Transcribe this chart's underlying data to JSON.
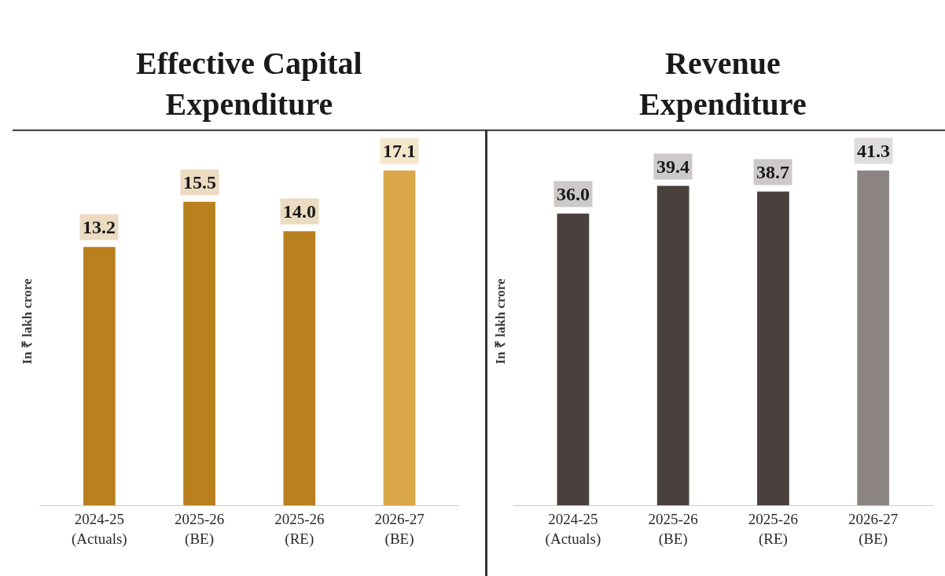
{
  "chart_data": [
    {
      "type": "bar",
      "title": "Effective Capital\nExpenditure",
      "ylabel": "In ₹ lakh crore",
      "categories": [
        "2024-25\n(Actuals)",
        "2025-26\n(BE)",
        "2025-26\n(RE)",
        "2026-27\n(BE)"
      ],
      "values": [
        13.2,
        15.5,
        14.0,
        17.1
      ],
      "value_labels": [
        "13.2",
        "15.5",
        "14.0",
        "17.1"
      ],
      "colors": [
        "#b8801e",
        "#b8801e",
        "#b8801e",
        "#d9a748"
      ],
      "legend": false
    },
    {
      "type": "bar",
      "title": "Revenue\nExpenditure",
      "ylabel": "In ₹ lakh crore",
      "categories": [
        "2024-25\n(Actuals)",
        "2025-26\n(BE)",
        "2025-26\n(RE)",
        "2026-27\n(BE)"
      ],
      "values": [
        36.0,
        39.4,
        38.7,
        41.3
      ],
      "value_labels": [
        "36.0",
        "39.4",
        "38.7",
        "41.3"
      ],
      "colors": [
        "#4a403d",
        "#4a403d",
        "#4a403d",
        "#8c8583"
      ],
      "legend": false
    }
  ]
}
